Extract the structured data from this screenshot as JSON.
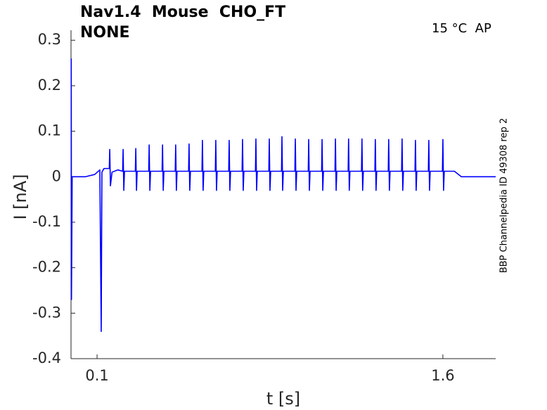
{
  "chart_data": {
    "type": "line",
    "title": "Nav1.4  Mouse  CHO_FT",
    "subtitle": "NONE",
    "annotation": "15 °C  AP",
    "side_note": "BBP Channelpedia ID 49308 rep 2",
    "x_label": "t [s]",
    "y_label": "I [nA]",
    "xlim": [
      -0.013,
      1.829
    ],
    "ylim": [
      -0.4,
      0.322
    ],
    "xticks": [
      0.1,
      1.6
    ],
    "yticks": [
      0.3,
      0.2,
      0.1,
      0,
      -0.1,
      -0.2,
      -0.3,
      -0.4
    ],
    "grid": false,
    "x": [
      -0.012,
      -0.011,
      -0.008,
      0.05,
      0.09,
      0.112,
      0.118,
      0.121,
      0.13,
      0.15,
      0.153,
      0.155,
      0.158,
      0.165,
      0.19,
      0.211,
      0.213,
      0.216,
      0.219,
      0.266,
      0.268,
      0.271,
      0.274,
      0.324,
      0.326,
      0.329,
      0.332,
      0.382,
      0.384,
      0.387,
      0.39,
      0.439,
      0.441,
      0.444,
      0.447,
      0.497,
      0.499,
      0.502,
      0.505,
      0.555,
      0.557,
      0.56,
      0.563,
      0.613,
      0.615,
      0.618,
      0.621,
      0.671,
      0.673,
      0.676,
      0.679,
      0.729,
      0.731,
      0.734,
      0.737,
      0.787,
      0.789,
      0.792,
      0.795,
      0.845,
      0.847,
      0.85,
      0.853,
      0.9,
      0.902,
      0.905,
      0.908,
      0.958,
      0.96,
      0.963,
      0.966,
      1.016,
      1.018,
      1.021,
      1.024,
      1.074,
      1.076,
      1.079,
      1.082,
      1.132,
      1.134,
      1.137,
      1.14,
      1.189,
      1.191,
      1.194,
      1.197,
      1.247,
      1.249,
      1.252,
      1.255,
      1.305,
      1.307,
      1.31,
      1.313,
      1.363,
      1.365,
      1.368,
      1.371,
      1.421,
      1.423,
      1.426,
      1.429,
      1.479,
      1.481,
      1.484,
      1.487,
      1.537,
      1.539,
      1.542,
      1.545,
      1.598,
      1.6,
      1.603,
      1.606,
      1.65,
      1.68,
      1.829
    ],
    "series": [
      {
        "color": "#0000ff",
        "values": [
          0.26,
          -0.27,
          0.0,
          0.0,
          0.005,
          0.015,
          -0.34,
          0.01,
          0.018,
          0.018,
          0.018,
          0.06,
          -0.02,
          0.01,
          0.015,
          0.012,
          0.06,
          -0.03,
          0.012,
          0.012,
          0.062,
          -0.03,
          0.012,
          0.012,
          0.07,
          -0.03,
          0.012,
          0.012,
          0.07,
          -0.03,
          0.012,
          0.012,
          0.07,
          -0.03,
          0.012,
          0.012,
          0.072,
          -0.03,
          0.012,
          0.012,
          0.08,
          -0.03,
          0.012,
          0.012,
          0.08,
          -0.03,
          0.012,
          0.012,
          0.08,
          -0.03,
          0.012,
          0.012,
          0.082,
          -0.03,
          0.012,
          0.012,
          0.083,
          -0.03,
          0.012,
          0.012,
          0.083,
          -0.03,
          0.012,
          0.012,
          0.088,
          -0.03,
          0.012,
          0.012,
          0.083,
          -0.03,
          0.012,
          0.012,
          0.082,
          -0.03,
          0.012,
          0.012,
          0.082,
          -0.03,
          0.012,
          0.012,
          0.083,
          -0.03,
          0.012,
          0.012,
          0.083,
          -0.03,
          0.012,
          0.012,
          0.083,
          -0.03,
          0.012,
          0.012,
          0.082,
          -0.03,
          0.012,
          0.012,
          0.082,
          -0.03,
          0.012,
          0.012,
          0.083,
          -0.03,
          0.012,
          0.012,
          0.08,
          -0.03,
          0.012,
          0.012,
          0.08,
          -0.03,
          0.012,
          0.012,
          0.082,
          -0.03,
          0.012,
          0.012,
          0.0,
          0.0
        ]
      }
    ]
  }
}
